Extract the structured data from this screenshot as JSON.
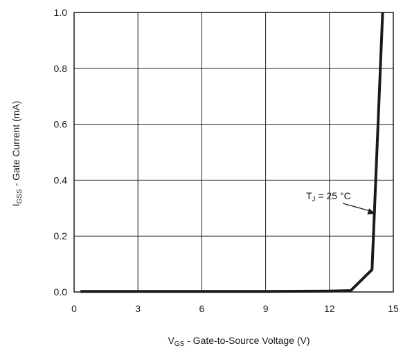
{
  "chart_data": {
    "type": "line",
    "xlabel": {
      "main": "V",
      "sub": "GS",
      "rest": " - Gate-to-Source Voltage (V)"
    },
    "ylabel": {
      "main": "I",
      "sub": "GSS",
      "rest": " - Gate Current (mA)"
    },
    "xlim": [
      0,
      15
    ],
    "ylim": [
      0,
      1.0
    ],
    "x_ticks": [
      "0",
      "3",
      "6",
      "9",
      "12",
      "15"
    ],
    "y_ticks": [
      "0.0",
      "0.2",
      "0.4",
      "0.6",
      "0.8",
      "1.0"
    ],
    "grid": true,
    "series": [
      {
        "name": "",
        "color": "#1a1a1a",
        "x": [
          0.3,
          3,
          6,
          9,
          12,
          13.0,
          14.0,
          14.5
        ],
        "y": [
          0.002,
          0.002,
          0.002,
          0.002,
          0.003,
          0.005,
          0.08,
          1.0
        ]
      }
    ],
    "annotation": {
      "main": "T",
      "sub": "J",
      "rest": " = 25 °C",
      "points_to": [
        14.0,
        0.28
      ]
    }
  }
}
